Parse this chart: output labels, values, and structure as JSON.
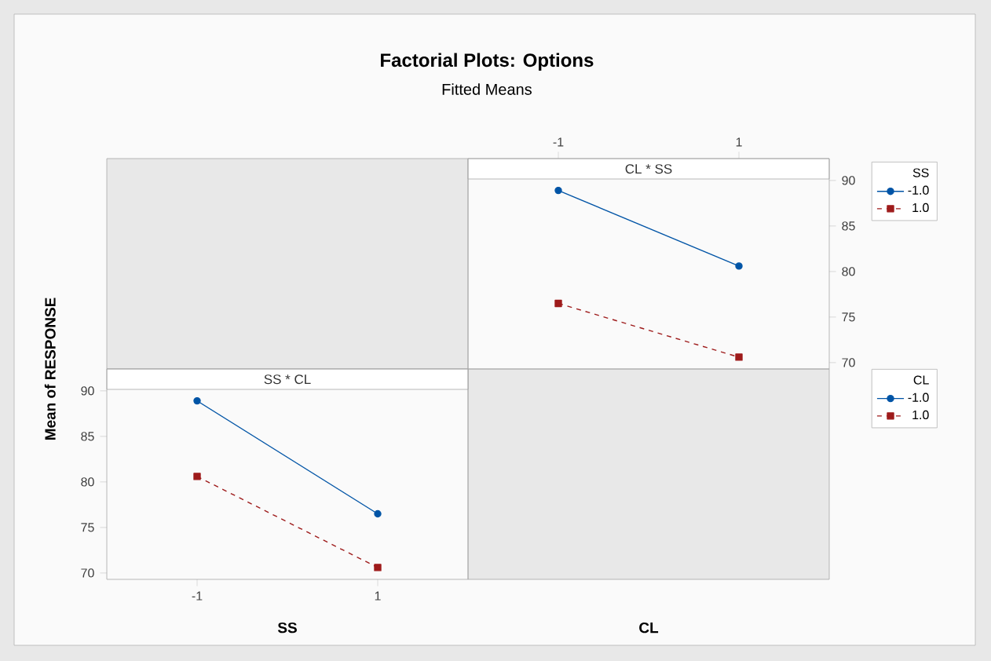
{
  "chart_data": [
    {
      "type": "line",
      "title": "Factorial Plots: Options",
      "subtitle": "Fitted Means",
      "annotations": [
        "CL * SS"
      ],
      "xlabel": "CL",
      "categories": [
        "-1",
        "1"
      ],
      "ylim": [
        69.3,
        92.4
      ],
      "yticks": [
        70,
        75,
        80,
        85,
        90
      ],
      "legend": "right",
      "legend_title": "SS",
      "grid": false,
      "series": [
        {
          "name": "-1.0",
          "color": "#0054a6",
          "values": [
            88.9,
            80.6
          ],
          "marker": "circle",
          "line_style": "solid"
        },
        {
          "name": "1.0",
          "color": "#9e1b1b",
          "values": [
            76.5,
            70.6
          ],
          "marker": "square",
          "line_style": "dashed"
        }
      ]
    },
    {
      "type": "line",
      "annotations": [
        "SS * CL"
      ],
      "xlabel": "SS",
      "ylabel": "Mean of RESPONSE",
      "categories": [
        "-1",
        "1"
      ],
      "ylim": [
        69.3,
        92.4
      ],
      "yticks": [
        70,
        75,
        80,
        85,
        90
      ],
      "legend": "right",
      "legend_title": "CL",
      "grid": false,
      "series": [
        {
          "name": "-1.0",
          "color": "#0054a6",
          "values": [
            88.9,
            76.5
          ],
          "marker": "circle",
          "line_style": "solid"
        },
        {
          "name": "1.0",
          "color": "#9e1b1b",
          "values": [
            80.6,
            70.6
          ],
          "marker": "square",
          "line_style": "dashed"
        }
      ]
    }
  ]
}
